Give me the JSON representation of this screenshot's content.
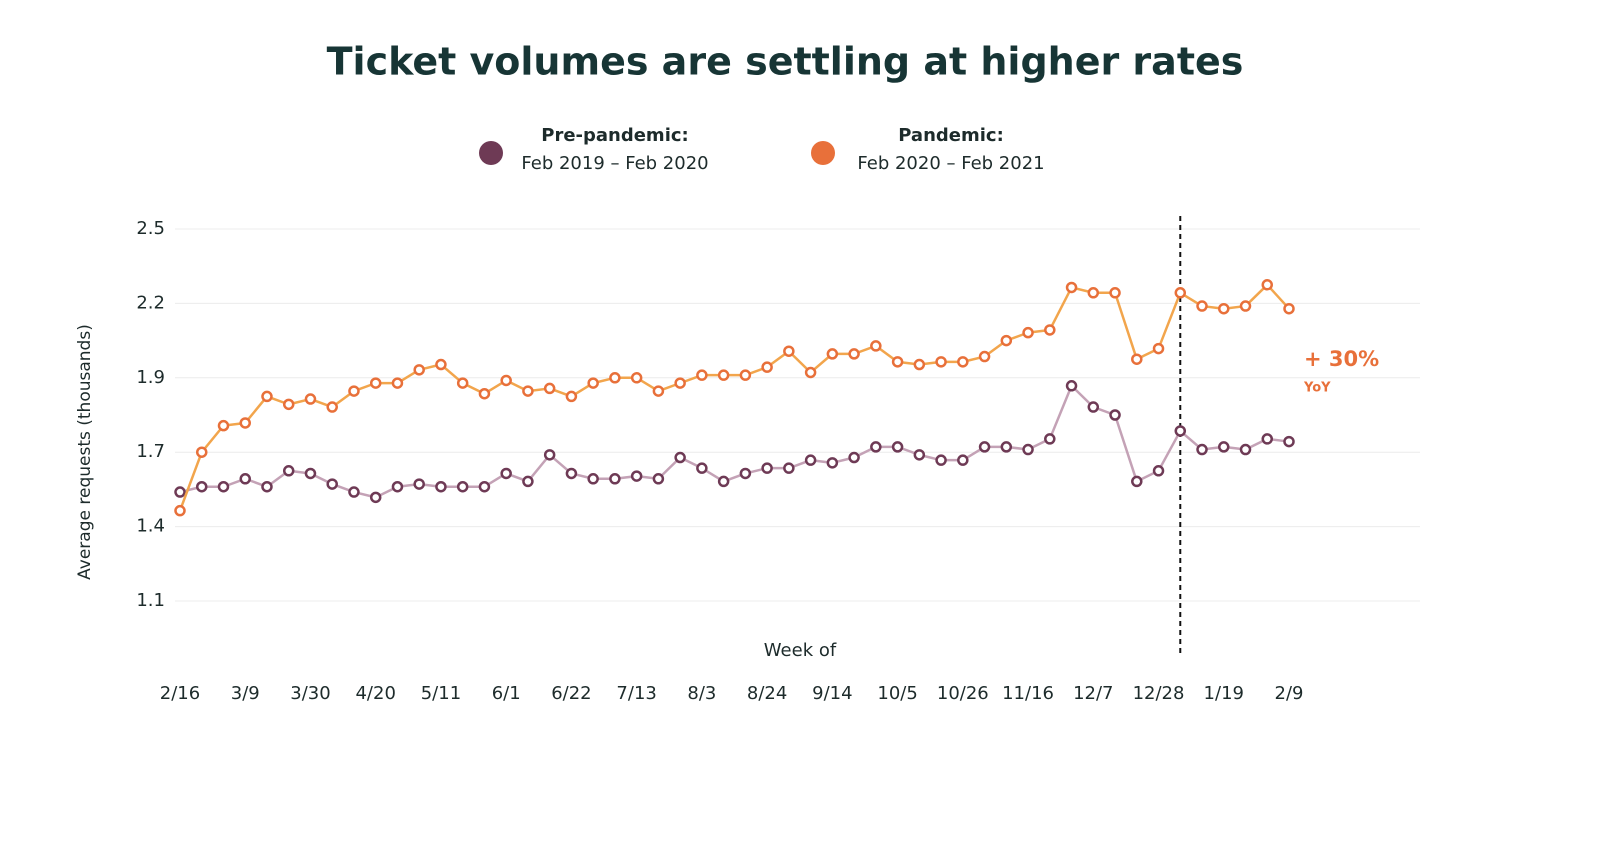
{
  "chart_data": {
    "type": "line",
    "title": "Ticket volumes are settling at higher rates",
    "y_label": "Average requests (thousands)",
    "x_label": "Week of",
    "categories": [
      "2/16",
      null,
      null,
      "3/9",
      null,
      null,
      "3/30",
      null,
      null,
      "4/20",
      null,
      null,
      "5/11",
      null,
      null,
      "6/1",
      null,
      null,
      "6/22",
      null,
      null,
      "7/13",
      null,
      null,
      "8/3",
      null,
      null,
      "8/24",
      null,
      null,
      "9/14",
      null,
      null,
      "10/5",
      null,
      null,
      "10/26",
      null,
      null,
      "11/16",
      null,
      null,
      "12/7",
      null,
      null,
      "12/28",
      null,
      null,
      "1/19",
      null,
      null,
      "2/9"
    ],
    "series": [
      {
        "name": "Pre-pandemic:",
        "period": "Feb 2019 – Feb 2020",
        "color": "#6e3a55",
        "line_color": "#c4a2b6",
        "values": [
          1.51,
          1.53,
          1.53,
          1.56,
          1.53,
          1.59,
          1.58,
          1.54,
          1.51,
          1.49,
          1.53,
          1.54,
          1.53,
          1.53,
          1.53,
          1.58,
          1.55,
          1.65,
          1.58,
          1.56,
          1.56,
          1.57,
          1.56,
          1.64,
          1.6,
          1.55,
          1.58,
          1.6,
          1.6,
          1.63,
          1.62,
          1.64,
          1.68,
          1.68,
          1.65,
          1.63,
          1.63,
          1.68,
          1.68,
          1.67,
          1.71,
          1.91,
          1.83,
          1.8,
          1.55,
          1.59,
          1.74,
          1.67,
          1.68,
          1.67,
          1.71,
          1.7
        ]
      },
      {
        "name": "Pandemic:",
        "period": "Feb 2020 – Feb 2021",
        "color": "#e8703a",
        "line_color": "#f2a54c",
        "values": [
          1.44,
          1.66,
          1.76,
          1.77,
          1.87,
          1.84,
          1.86,
          1.83,
          1.89,
          1.92,
          1.92,
          1.97,
          1.99,
          1.92,
          1.88,
          1.93,
          1.89,
          1.9,
          1.87,
          1.92,
          1.94,
          1.94,
          1.89,
          1.92,
          1.95,
          1.95,
          1.95,
          1.98,
          2.04,
          1.96,
          2.03,
          2.03,
          2.06,
          2.0,
          1.99,
          2.0,
          2.0,
          2.02,
          2.08,
          2.11,
          2.12,
          2.28,
          2.26,
          2.26,
          2.01,
          2.05,
          2.26,
          2.21,
          2.2,
          2.21,
          2.29,
          2.2
        ]
      }
    ],
    "ylim": [
      1.1,
      2.5
    ],
    "yticks": [
      1.1,
      {
        "value": 1.38,
        "label": "1.4"
      },
      {
        "value": 1.66,
        "label": "1.7"
      },
      {
        "value": 1.94,
        "label": "1.9"
      },
      {
        "value": 2.22,
        "label": "2.2"
      },
      2.5
    ],
    "grid": true,
    "divider_index": 46,
    "annotation": {
      "text": "+ 30%",
      "subtext": "YoY",
      "color": "#e8703a"
    }
  }
}
